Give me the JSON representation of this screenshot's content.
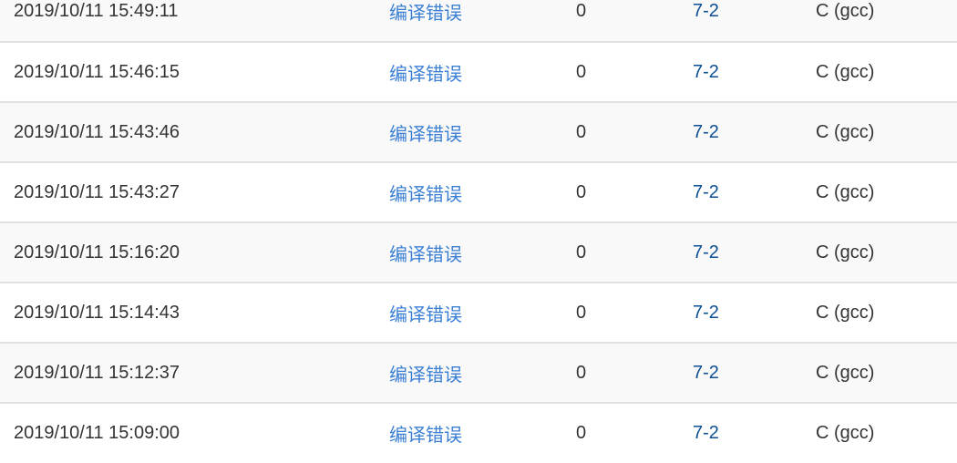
{
  "submissions": [
    {
      "time": "2019/10/11 15:49:11",
      "status": "编译错误",
      "score": "0",
      "problem": "7-2",
      "compiler": "C (gcc)"
    },
    {
      "time": "2019/10/11 15:46:15",
      "status": "编译错误",
      "score": "0",
      "problem": "7-2",
      "compiler": "C (gcc)"
    },
    {
      "time": "2019/10/11 15:43:46",
      "status": "编译错误",
      "score": "0",
      "problem": "7-2",
      "compiler": "C (gcc)"
    },
    {
      "time": "2019/10/11 15:43:27",
      "status": "编译错误",
      "score": "0",
      "problem": "7-2",
      "compiler": "C (gcc)"
    },
    {
      "time": "2019/10/11 15:16:20",
      "status": "编译错误",
      "score": "0",
      "problem": "7-2",
      "compiler": "C (gcc)"
    },
    {
      "time": "2019/10/11 15:14:43",
      "status": "编译错误",
      "score": "0",
      "problem": "7-2",
      "compiler": "C (gcc)"
    },
    {
      "time": "2019/10/11 15:12:37",
      "status": "编译错误",
      "score": "0",
      "problem": "7-2",
      "compiler": "C (gcc)"
    },
    {
      "time": "2019/10/11 15:09:00",
      "status": "编译错误",
      "score": "0",
      "problem": "7-2",
      "compiler": "C (gcc)"
    }
  ],
  "colors": {
    "status_link": "#3b7fd4",
    "problem_link": "#0d4f94",
    "text": "#333333",
    "stripe": "#f9f9f9"
  }
}
